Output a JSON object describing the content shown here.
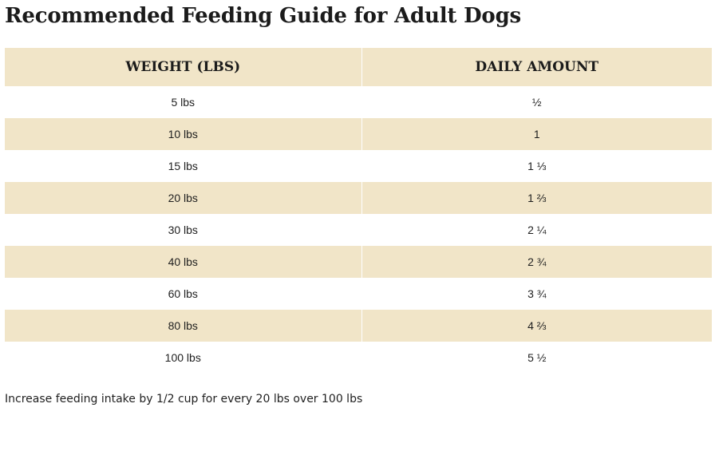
{
  "title": "Recommended Feeding Guide for Adult Dogs",
  "table": {
    "headers": [
      "WEIGHT (LBS)",
      "DAILY AMOUNT"
    ],
    "rows": [
      [
        "5 lbs",
        "½"
      ],
      [
        "10 lbs",
        "1"
      ],
      [
        "15 lbs",
        "1 ⅓"
      ],
      [
        "20 lbs",
        "1 ⅔"
      ],
      [
        "30 lbs",
        "2 ¼"
      ],
      [
        "40 lbs",
        "2 ¾"
      ],
      [
        "60 lbs",
        "3 ¾"
      ],
      [
        "80 lbs",
        "4 ⅔"
      ],
      [
        "100 lbs",
        "5 ½"
      ]
    ]
  },
  "note": "Increase feeding intake by 1/2 cup for every 20 lbs over 100 lbs",
  "colors": {
    "row_shade": "#f1e5c8",
    "background": "#ffffff",
    "text": "#1b1b1b"
  }
}
